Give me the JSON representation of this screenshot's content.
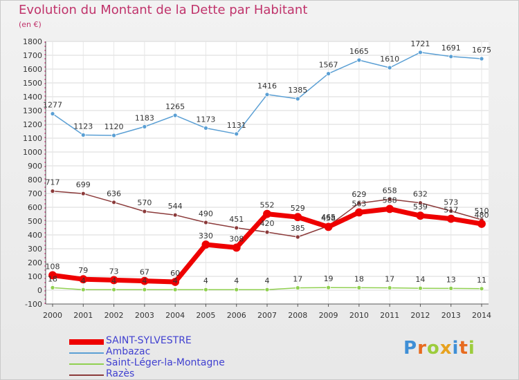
{
  "header": {
    "title": "Evolution du Montant de la Dette par Habitant",
    "subtitle": "(en €)"
  },
  "logo": {
    "text": "Proxiti"
  },
  "chart_data": {
    "type": "line",
    "title": "Evolution du Montant de la Dette par Habitant",
    "subtitle": "(en €)",
    "xlabel": "",
    "ylabel": "",
    "x": [
      "2000",
      "2001",
      "2002",
      "2003",
      "2004",
      "2005",
      "2006",
      "2007",
      "2008",
      "2009",
      "2010",
      "2011",
      "2012",
      "2013",
      "2014"
    ],
    "ylim": [
      -100,
      1800
    ],
    "yticks": [
      -100,
      0,
      100,
      200,
      300,
      400,
      500,
      600,
      700,
      800,
      900,
      1000,
      1100,
      1200,
      1300,
      1400,
      1500,
      1600,
      1700,
      1800
    ],
    "grid": true,
    "legend_position": "bottom-left",
    "series": [
      {
        "name": "SAINT-SYLVESTRE",
        "color": "#ee0000",
        "values": [
          108,
          79,
          73,
          67,
          60,
          330,
          308,
          552,
          529,
          458,
          563,
          588,
          539,
          517,
          480
        ]
      },
      {
        "name": "Ambazac",
        "color": "#5a9fd4",
        "values": [
          1277,
          1123,
          1120,
          1183,
          1265,
          1173,
          1131,
          1416,
          1385,
          1567,
          1665,
          1610,
          1721,
          1691,
          1675
        ]
      },
      {
        "name": "Saint-Léger-la-Montagne",
        "color": "#90d050",
        "values": [
          18,
          4,
          4,
          4,
          4,
          4,
          4,
          4,
          17,
          19,
          18,
          17,
          14,
          13,
          11
        ]
      },
      {
        "name": "Razès",
        "color": "#8b3a3a",
        "values": [
          717,
          699,
          636,
          570,
          544,
          490,
          451,
          420,
          385,
          465,
          629,
          658,
          632,
          573,
          510
        ]
      }
    ]
  }
}
